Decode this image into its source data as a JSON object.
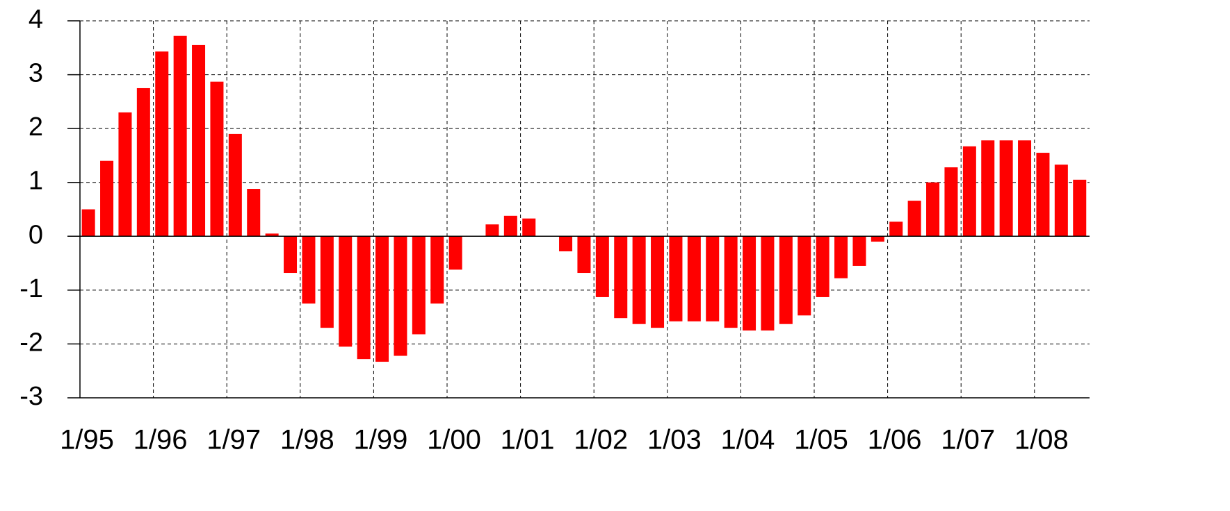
{
  "chart_data": {
    "type": "bar",
    "categories": [
      "1/95",
      null,
      null,
      null,
      "1/96",
      null,
      null,
      null,
      "1/97",
      null,
      null,
      null,
      "1/98",
      null,
      null,
      null,
      "1/99",
      null,
      null,
      null,
      "1/00",
      null,
      null,
      null,
      "1/01",
      null,
      null,
      null,
      "1/02",
      null,
      null,
      null,
      "1/03",
      null,
      null,
      null,
      "1/04",
      null,
      null,
      null,
      "1/05",
      null,
      null,
      null,
      "1/06",
      null,
      null,
      null,
      "1/07",
      null,
      null,
      null,
      "1/08",
      null,
      null
    ],
    "values": [
      0.5,
      1.4,
      2.3,
      2.75,
      3.43,
      3.72,
      3.55,
      2.87,
      1.9,
      0.88,
      0.05,
      -0.68,
      -1.25,
      -1.7,
      -2.05,
      -2.28,
      -2.33,
      -2.22,
      -1.82,
      -1.25,
      -0.62,
      0,
      0.22,
      0.38,
      0.33,
      0,
      -0.28,
      -0.68,
      -1.13,
      -1.52,
      -1.63,
      -1.7,
      -1.58,
      -1.58,
      -1.58,
      -1.7,
      -1.75,
      -1.75,
      -1.63,
      -1.47,
      -1.13,
      -0.78,
      -0.55,
      -0.1,
      0.27,
      0.66,
      1.0,
      1.28,
      1.67,
      1.78,
      1.78,
      1.78,
      1.55,
      1.33,
      1.05
    ],
    "color": "#ff0000",
    "ylim": [
      -3,
      4
    ],
    "yticks": [
      -3,
      -2,
      -1,
      0,
      1,
      2,
      3,
      4
    ],
    "grid": true
  }
}
